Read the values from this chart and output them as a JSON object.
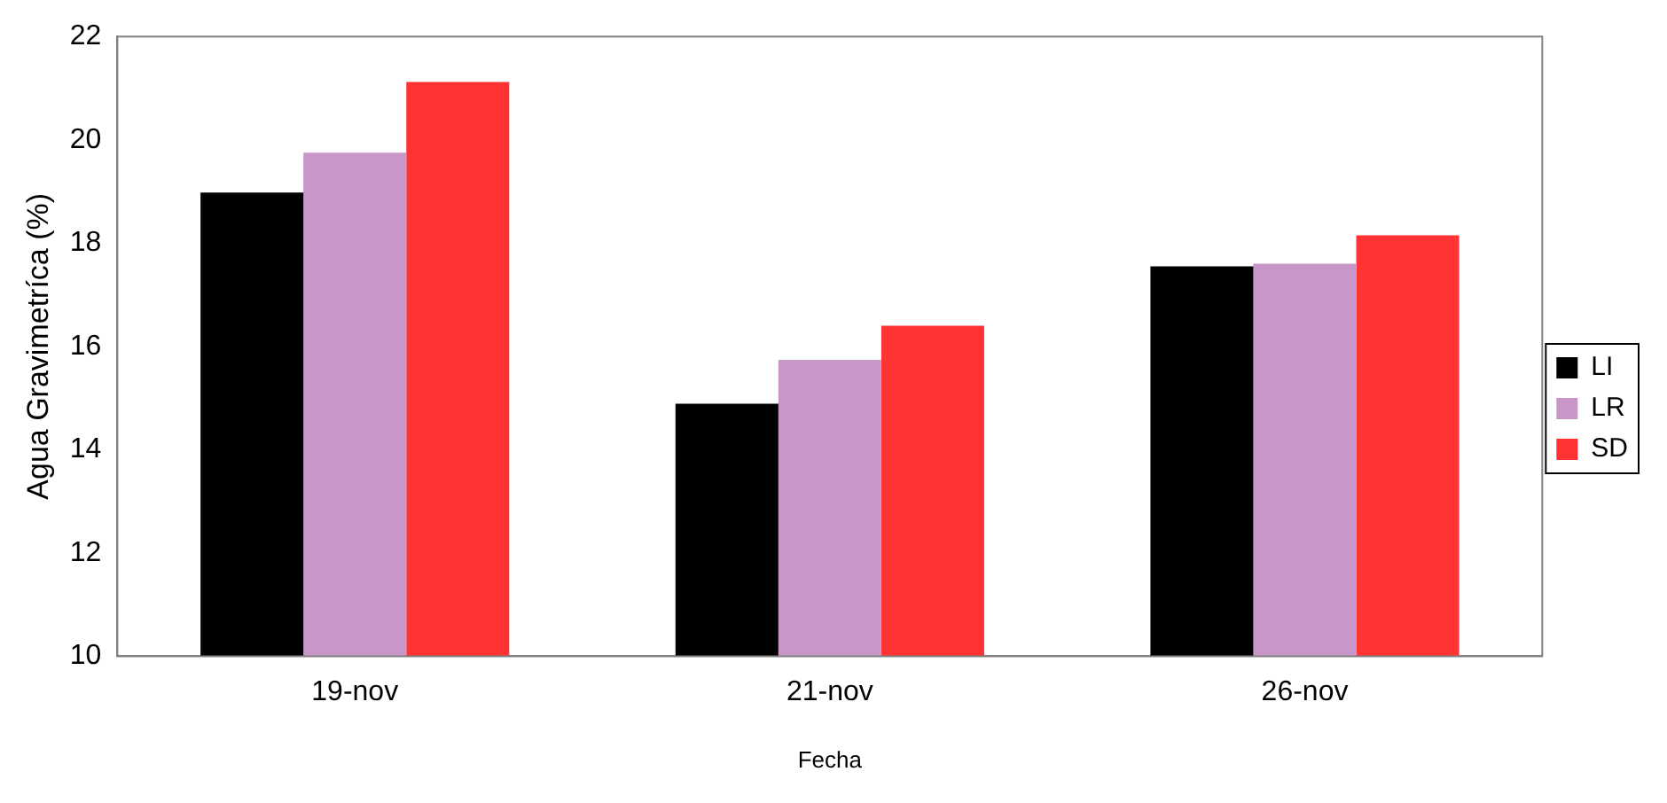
{
  "chart_data": {
    "type": "bar",
    "xlabel": "Fecha",
    "ylabel": "Agua Gravimetríca (%)",
    "categories": [
      "19-nov",
      "21-nov",
      "26-nov"
    ],
    "series": [
      {
        "name": "LI",
        "color": "#000000",
        "values": [
          18.98,
          14.89,
          17.55
        ]
      },
      {
        "name": "LR",
        "color": "#c896c8",
        "values": [
          19.75,
          15.74,
          17.6
        ]
      },
      {
        "name": "SD",
        "color": "#ff3333",
        "values": [
          21.12,
          16.4,
          18.15
        ]
      }
    ],
    "ylim": [
      10,
      22
    ],
    "yticks": [
      10,
      12,
      14,
      16,
      18,
      20,
      22
    ],
    "grid": false,
    "legend": "right"
  }
}
